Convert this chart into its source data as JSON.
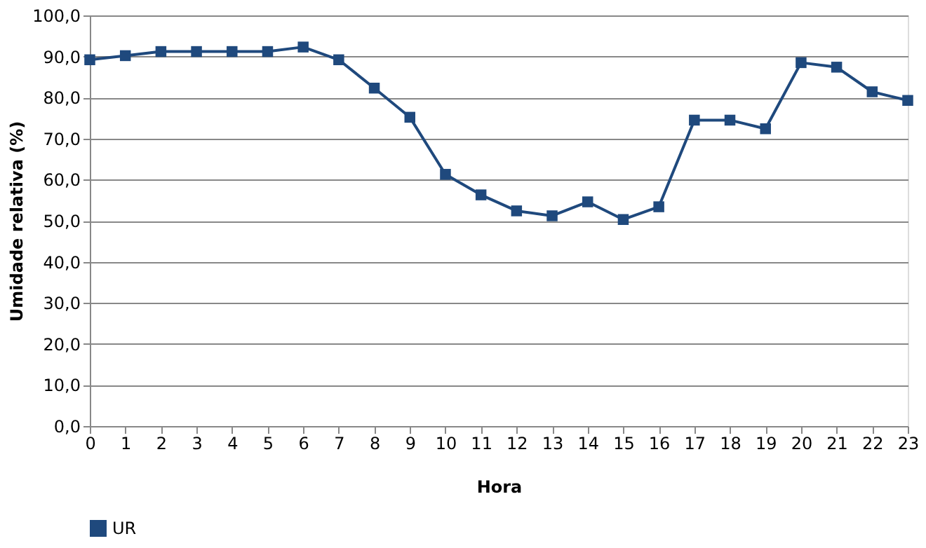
{
  "chart_data": {
    "type": "line",
    "xlabel": "Hora",
    "ylabel": "Umidade relativa (%)",
    "x": [
      0,
      1,
      2,
      3,
      4,
      5,
      6,
      7,
      8,
      9,
      10,
      11,
      12,
      13,
      14,
      15,
      16,
      17,
      18,
      19,
      20,
      21,
      22,
      23
    ],
    "series": [
      {
        "name": "UR",
        "color": "#1f497d",
        "values": [
          89.2,
          90.2,
          91.2,
          91.2,
          91.2,
          91.2,
          92.3,
          89.2,
          82.3,
          75.2,
          61.3,
          56.3,
          52.4,
          51.2,
          54.6,
          50.3,
          53.4,
          74.5,
          74.5,
          72.4,
          88.5,
          87.4,
          81.4,
          79.3
        ]
      }
    ],
    "xlim": [
      0,
      23
    ],
    "xticks": [
      0,
      1,
      2,
      3,
      4,
      5,
      6,
      7,
      8,
      9,
      10,
      11,
      12,
      13,
      14,
      15,
      16,
      17,
      18,
      19,
      20,
      21,
      22,
      23
    ],
    "ylim": [
      0,
      100
    ],
    "yticks": [
      {
        "value": 0,
        "label": "0,0"
      },
      {
        "value": 10,
        "label": "10,0"
      },
      {
        "value": 20,
        "label": "20,0"
      },
      {
        "value": 30,
        "label": "30,0"
      },
      {
        "value": 40,
        "label": "40,0"
      },
      {
        "value": 50,
        "label": "50,0"
      },
      {
        "value": 60,
        "label": "60,0"
      },
      {
        "value": 70,
        "label": "70,0"
      },
      {
        "value": 80,
        "label": "80,0"
      },
      {
        "value": 90,
        "label": "90,0"
      },
      {
        "value": 100,
        "label": "100,0"
      }
    ],
    "grid": "y",
    "legend": "bottom",
    "marker": "square",
    "line_style": "solid"
  }
}
